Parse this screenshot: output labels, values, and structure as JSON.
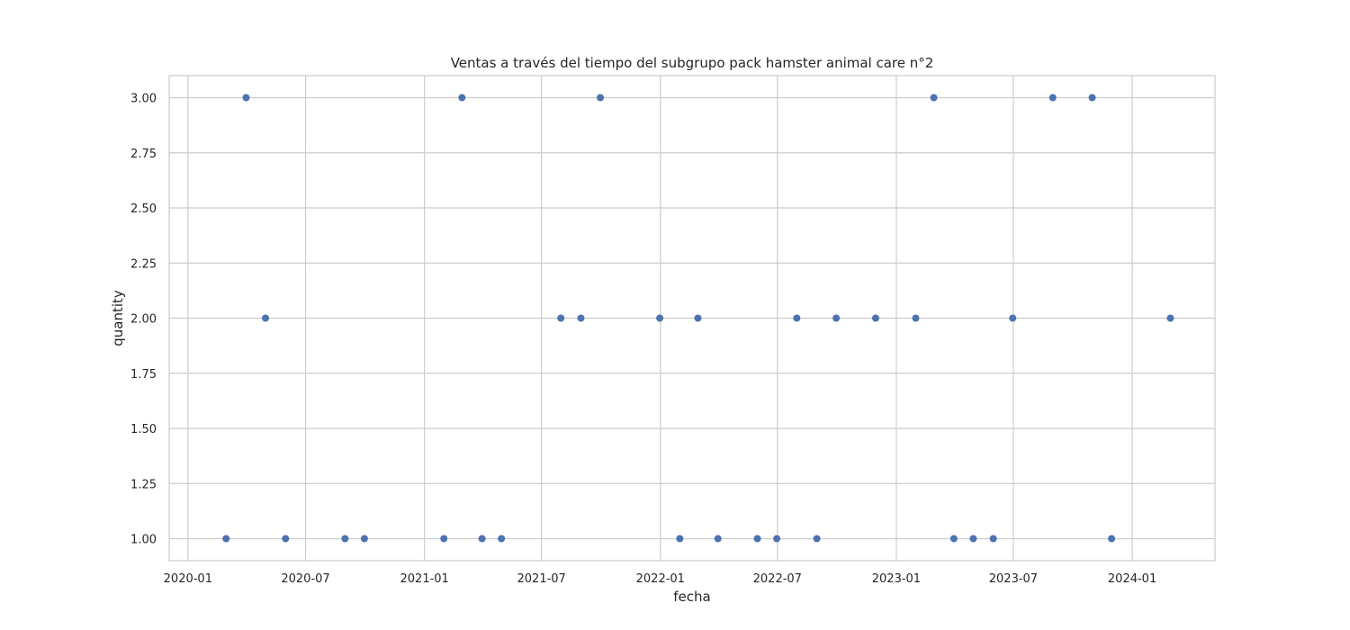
{
  "chart_data": {
    "type": "scatter",
    "title": "Ventas a través del tiempo del subgrupo pack hamster animal care n°2",
    "xlabel": "fecha",
    "ylabel": "quantity",
    "xlim": [
      "2019-12-03",
      "2024-05-08"
    ],
    "ylim": [
      0.9,
      3.1
    ],
    "x_ticks": [
      "2020-01",
      "2020-07",
      "2021-01",
      "2021-07",
      "2022-01",
      "2022-07",
      "2023-01",
      "2023-07",
      "2024-01"
    ],
    "y_ticks": [
      "1.00",
      "1.25",
      "1.50",
      "1.75",
      "2.00",
      "2.25",
      "2.50",
      "2.75",
      "3.00"
    ],
    "grid": true,
    "color": "#4c72b0",
    "points": [
      {
        "x": "2020-02-29",
        "y": 1
      },
      {
        "x": "2020-03-31",
        "y": 3
      },
      {
        "x": "2020-04-30",
        "y": 2
      },
      {
        "x": "2020-05-31",
        "y": 1
      },
      {
        "x": "2020-08-31",
        "y": 1
      },
      {
        "x": "2020-09-30",
        "y": 1
      },
      {
        "x": "2021-01-31",
        "y": 1
      },
      {
        "x": "2021-02-28",
        "y": 3
      },
      {
        "x": "2021-03-31",
        "y": 1
      },
      {
        "x": "2021-04-30",
        "y": 1
      },
      {
        "x": "2021-07-31",
        "y": 2
      },
      {
        "x": "2021-08-31",
        "y": 2
      },
      {
        "x": "2021-09-30",
        "y": 3
      },
      {
        "x": "2021-12-31",
        "y": 2
      },
      {
        "x": "2022-01-31",
        "y": 1
      },
      {
        "x": "2022-02-28",
        "y": 2
      },
      {
        "x": "2022-03-31",
        "y": 1
      },
      {
        "x": "2022-05-31",
        "y": 1
      },
      {
        "x": "2022-06-30",
        "y": 1
      },
      {
        "x": "2022-07-31",
        "y": 2
      },
      {
        "x": "2022-08-31",
        "y": 1
      },
      {
        "x": "2022-09-30",
        "y": 2
      },
      {
        "x": "2022-11-30",
        "y": 2
      },
      {
        "x": "2023-01-31",
        "y": 2
      },
      {
        "x": "2023-02-28",
        "y": 3
      },
      {
        "x": "2023-03-31",
        "y": 1
      },
      {
        "x": "2023-04-30",
        "y": 1
      },
      {
        "x": "2023-05-31",
        "y": 1
      },
      {
        "x": "2023-06-30",
        "y": 2
      },
      {
        "x": "2023-08-31",
        "y": 3
      },
      {
        "x": "2023-10-31",
        "y": 3
      },
      {
        "x": "2023-11-30",
        "y": 1
      },
      {
        "x": "2024-02-29",
        "y": 2
      }
    ]
  }
}
